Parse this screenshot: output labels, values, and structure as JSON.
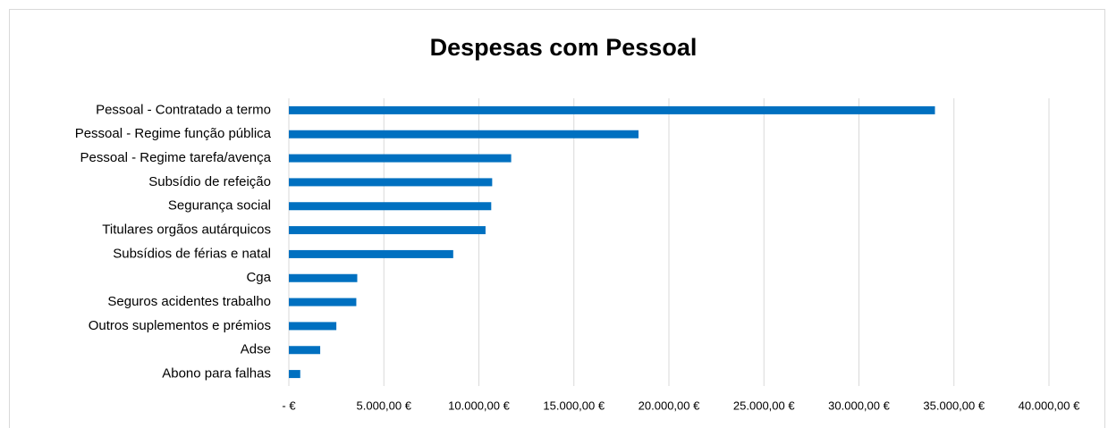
{
  "chart_data": {
    "type": "bar",
    "orientation": "horizontal",
    "title": "Despesas com Pessoal",
    "categories": [
      "Pessoal - Contratado a termo",
      "Pessoal - Regime função pública",
      "Pessoal - Regime tarefa/avença",
      "Subsídio de refeição",
      "Segurança social",
      "Titulares orgãos autárquicos",
      "Subsídios de férias e natal",
      "Cga",
      "Seguros acidentes trabalho",
      "Outros suplementos e prémios",
      "Adse",
      "Abono para falhas"
    ],
    "values": [
      34000,
      18400,
      11700,
      10700,
      10650,
      10350,
      8650,
      3600,
      3550,
      2500,
      1650,
      600
    ],
    "color": "#0070c0",
    "xlim": [
      0,
      40000
    ],
    "xticks": [
      {
        "value": 0,
        "label": "-   €"
      },
      {
        "value": 5000,
        "label": "5.000,00 €"
      },
      {
        "value": 10000,
        "label": "10.000,00 €"
      },
      {
        "value": 15000,
        "label": "15.000,00 €"
      },
      {
        "value": 20000,
        "label": "20.000,00 €"
      },
      {
        "value": 25000,
        "label": "25.000,00 €"
      },
      {
        "value": 30000,
        "label": "30.000,00 €"
      },
      {
        "value": 35000,
        "label": "35.000,00 €"
      },
      {
        "value": 40000,
        "label": "40.000,00 €"
      }
    ],
    "grid": true
  }
}
